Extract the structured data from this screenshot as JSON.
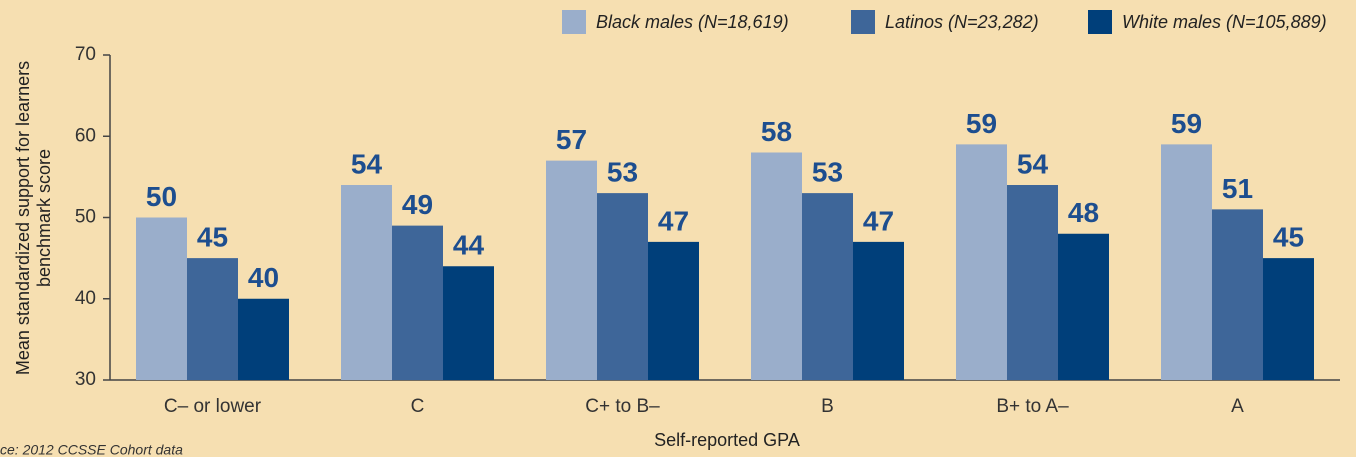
{
  "chart_data": {
    "type": "bar",
    "x_label": "Self-reported GPA",
    "y_label": [
      "Mean standardized support for learners",
      "benchmark score"
    ],
    "source": "ce: 2012 CCSSE Cohort data",
    "categories": [
      "C– or lower",
      "C",
      "C+ to B–",
      "B",
      "B+ to A–",
      "A"
    ],
    "series": [
      {
        "name": "Black males (N=18,619)",
        "color": "#9aaecb",
        "values": [
          50,
          54,
          57,
          58,
          59,
          59
        ]
      },
      {
        "name": "Latinos (N=23,282)",
        "color": "#3e6699",
        "values": [
          45,
          49,
          53,
          53,
          54,
          51
        ]
      },
      {
        "name": "White males (N=105,889)",
        "color": "#003f7a",
        "values": [
          40,
          44,
          47,
          47,
          48,
          45
        ]
      }
    ],
    "ylim": [
      30,
      70
    ],
    "yticks": [
      30,
      40,
      50,
      60,
      70
    ],
    "grid": false,
    "legend": "top"
  }
}
